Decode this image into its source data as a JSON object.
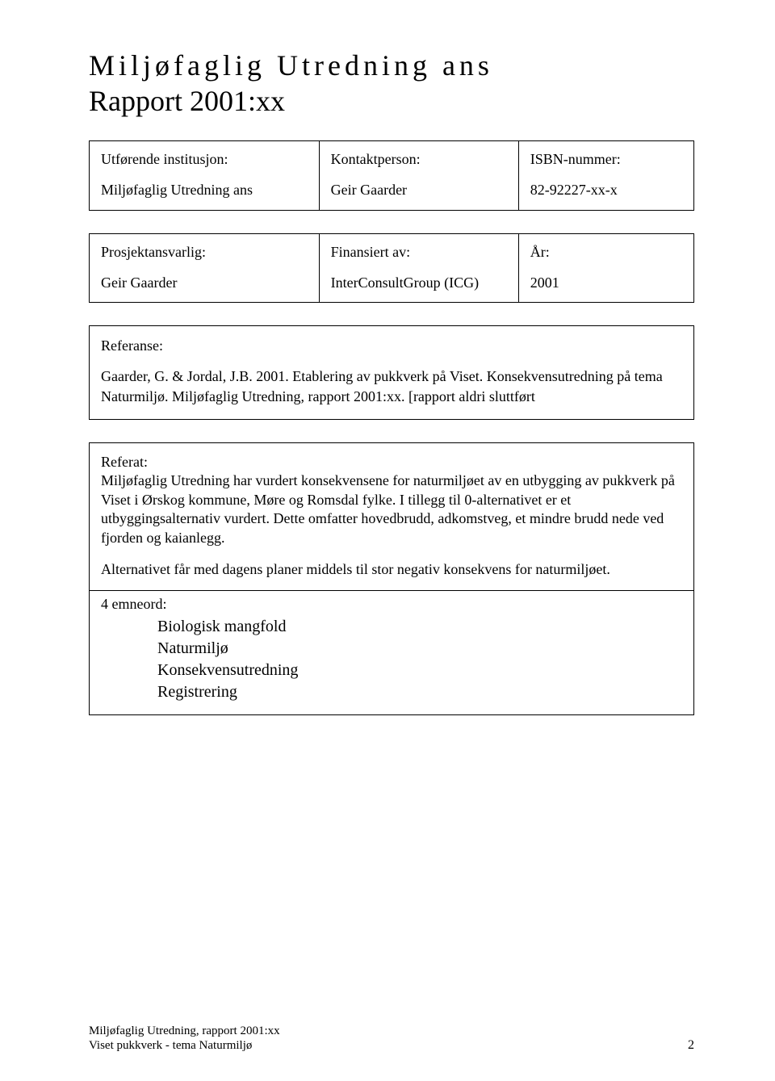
{
  "title": {
    "line1": "Miljøfaglig Utredning ans",
    "line2": "Rapport 2001:xx"
  },
  "box1": {
    "col1_label": "Utførende institusjon:",
    "col1_value": "Miljøfaglig Utredning ans",
    "col2_label": "Kontaktperson:",
    "col2_value": "Geir Gaarder",
    "col3_label": "ISBN-nummer:",
    "col3_value": "82-92227-xx-x"
  },
  "box2": {
    "col1_label": "Prosjektansvarlig:",
    "col1_value": "Geir Gaarder",
    "col2_label": "Finansiert av:",
    "col2_value": "InterConsultGroup (ICG)",
    "col3_label": "År:",
    "col3_value": "2001"
  },
  "reference": {
    "label": "Referanse:",
    "text": "Gaarder, G. & Jordal, J.B. 2001. Etablering av pukkverk på Viset. Konsekvensutredning på tema Naturmiljø. Miljøfaglig Utredning, rapport 2001:xx. [rapport aldri sluttført"
  },
  "abstract": {
    "label": "Referat:",
    "body": "Miljøfaglig Utredning har vurdert konsekvensene for naturmiljøet av en utbygging av pukkverk på Viset i Ørskog kommune, Møre og Romsdal fylke. I tillegg til 0-alternativet er et utbyggingsalternativ vurdert. Dette omfatter hovedbrudd, adkomstveg, et mindre brudd nede ved fjorden og kaianlegg.",
    "alt": "Alternativet får med dagens planer middels til stor negativ konsekvens for naturmiljøet."
  },
  "keywords": {
    "label": "4 emneord:",
    "items": [
      "Biologisk mangfold",
      "Naturmiljø",
      "Konsekvensutredning",
      "Registrering"
    ]
  },
  "footer": {
    "line1": "Miljøfaglig Utredning, rapport 2001:xx",
    "line2": "Viset pukkverk - tema Naturmiljø",
    "page": "2"
  },
  "layout": {
    "col1_width": "38%",
    "col2_width": "33%",
    "col3_width": "29%"
  }
}
